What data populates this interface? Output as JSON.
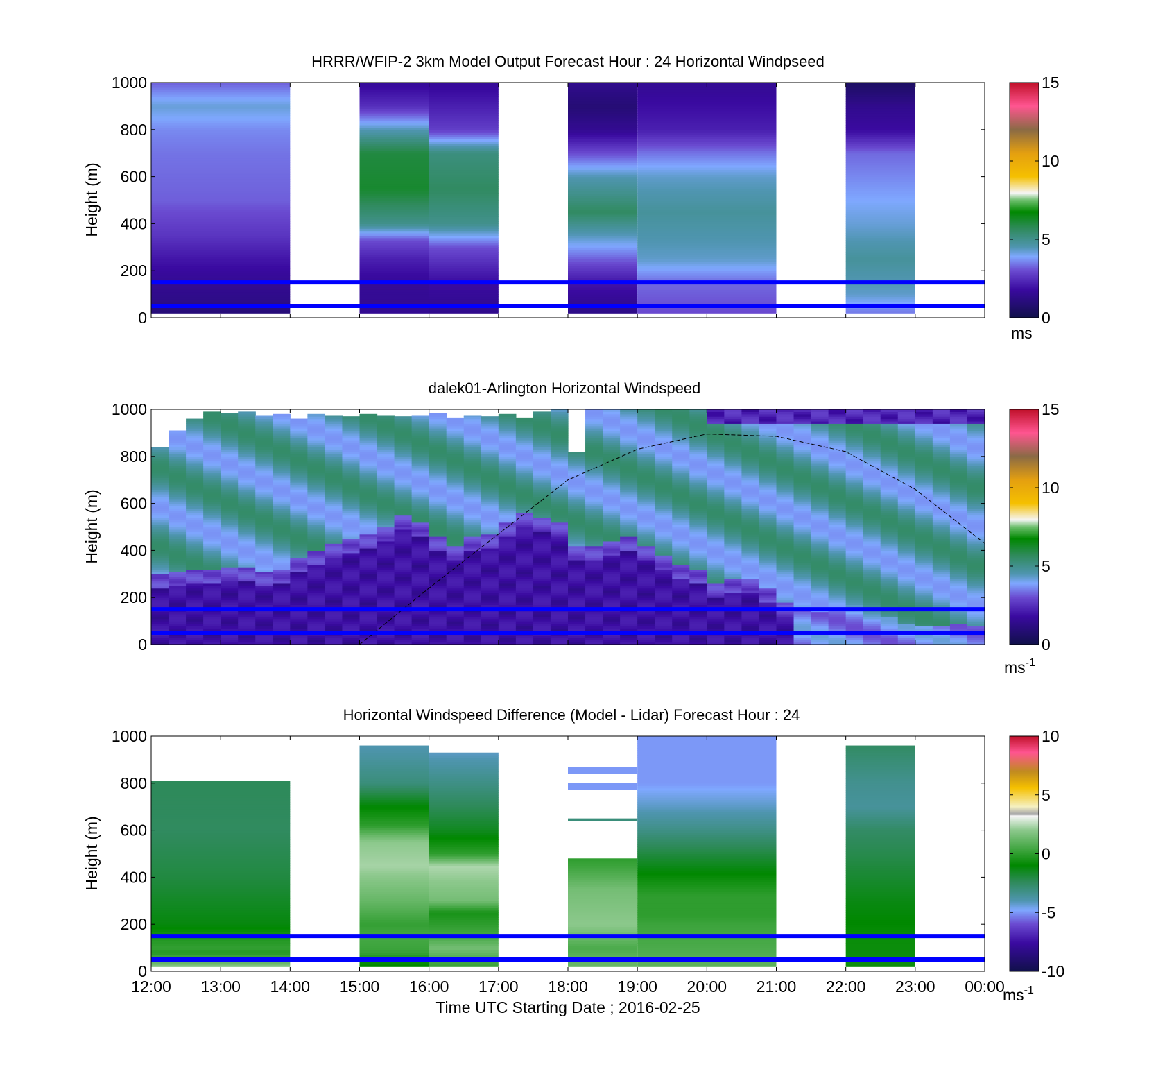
{
  "colorbar_units": [
    "ms",
    "ms",
    "-1",
    "ms",
    "-1"
  ],
  "colors": {
    "ws": [
      [
        0,
        "#10104a"
      ],
      [
        0.12,
        "#3a0aa0"
      ],
      [
        0.2,
        "#6a4ad0"
      ],
      [
        0.26,
        "#7fa8ff"
      ],
      [
        0.3,
        "#4f95b0"
      ],
      [
        0.38,
        "#2e8a5a"
      ],
      [
        0.45,
        "#008800"
      ],
      [
        0.5,
        "#6dbf6d"
      ],
      [
        0.53,
        "#f5f5f5"
      ],
      [
        0.6,
        "#f5c000"
      ],
      [
        0.7,
        "#e49f10"
      ],
      [
        0.8,
        "#8a6a45"
      ],
      [
        0.9,
        "#ff5590"
      ],
      [
        1,
        "#c0102a"
      ]
    ],
    "diff": [
      [
        0,
        "#10104a"
      ],
      [
        0.12,
        "#3a0aa0"
      ],
      [
        0.2,
        "#6a4ad0"
      ],
      [
        0.26,
        "#7fa8ff"
      ],
      [
        0.3,
        "#4f95b0"
      ],
      [
        0.38,
        "#2e8a5a"
      ],
      [
        0.45,
        "#008800"
      ],
      [
        0.6,
        "#8cc88c"
      ],
      [
        0.66,
        "#f5f5f5"
      ],
      [
        0.67,
        "#aaaaaa"
      ],
      [
        0.7,
        "#f5f0c0"
      ],
      [
        0.78,
        "#f5c000"
      ],
      [
        0.85,
        "#c08a20"
      ],
      [
        0.93,
        "#ff5590"
      ],
      [
        1,
        "#c0102a"
      ]
    ],
    "line": "#0000ff",
    "sun_curve": "#000000"
  },
  "chart_data": [
    {
      "type": "heatmap",
      "title": "HRRR/WFIP-2 3km Model Output   Forecast Hour : 24 Horizontal Windpseed",
      "ylabel": "Height (m)",
      "ylim": [
        0,
        1000
      ],
      "yticks": [
        "0",
        "200",
        "400",
        "600",
        "800",
        "1000"
      ],
      "xlim_hours": [
        12,
        24
      ],
      "colorbar": {
        "range": [
          0,
          15
        ],
        "ticks": [
          "0",
          "5",
          "10",
          "15"
        ],
        "unit": "ms",
        "colormap": "ws"
      },
      "reference_heights_m": [
        150,
        50
      ],
      "columns": [
        {
          "start_hour": 12,
          "end_hour": 14,
          "top_m": 1000,
          "bottom_m": 20,
          "profile": [
            [
              30,
              1.0
            ],
            [
              80,
              1.3
            ],
            [
              150,
              1.5
            ],
            [
              250,
              2.0
            ],
            [
              350,
              2.6
            ],
            [
              500,
              3.2
            ],
            [
              700,
              3.4
            ],
            [
              800,
              3.6
            ],
            [
              900,
              4.2
            ],
            [
              1000,
              3.2
            ]
          ]
        },
        {
          "start_hour": 15,
          "end_hour": 16,
          "top_m": 1000,
          "bottom_m": 20,
          "profile": [
            [
              30,
              1.5
            ],
            [
              150,
              1.6
            ],
            [
              250,
              2.2
            ],
            [
              330,
              3.0
            ],
            [
              400,
              5.0
            ],
            [
              550,
              6.2
            ],
            [
              700,
              6.0
            ],
            [
              800,
              4.5
            ],
            [
              900,
              2.5
            ],
            [
              1000,
              1.6
            ]
          ]
        },
        {
          "start_hour": 16,
          "end_hour": 17,
          "top_m": 1000,
          "bottom_m": 20,
          "profile": [
            [
              30,
              1.4
            ],
            [
              150,
              1.8
            ],
            [
              300,
              3.0
            ],
            [
              400,
              5.0
            ],
            [
              550,
              5.6
            ],
            [
              700,
              5.2
            ],
            [
              800,
              2.8
            ],
            [
              1000,
              1.6
            ]
          ]
        },
        {
          "start_hour": 18,
          "end_hour": 19,
          "top_m": 1000,
          "bottom_m": 20,
          "profile": [
            [
              30,
              1.3
            ],
            [
              150,
              2.0
            ],
            [
              300,
              3.8
            ],
            [
              450,
              5.6
            ],
            [
              600,
              4.5
            ],
            [
              700,
              3.0
            ],
            [
              800,
              1.5
            ],
            [
              900,
              0.9
            ],
            [
              1000,
              1.4
            ]
          ]
        },
        {
          "start_hour": 19,
          "end_hour": 21,
          "top_m": 1000,
          "bottom_m": 20,
          "profile": [
            [
              30,
              3.0
            ],
            [
              150,
              3.3
            ],
            [
              250,
              4.3
            ],
            [
              450,
              4.8
            ],
            [
              600,
              4.3
            ],
            [
              700,
              3.4
            ],
            [
              800,
              2.2
            ],
            [
              1000,
              1.5
            ]
          ]
        },
        {
          "start_hour": 22,
          "end_hour": 23,
          "top_m": 1000,
          "bottom_m": 20,
          "profile": [
            [
              30,
              3.5
            ],
            [
              100,
              4.3
            ],
            [
              250,
              4.8
            ],
            [
              400,
              4.2
            ],
            [
              600,
              3.6
            ],
            [
              700,
              3.3
            ],
            [
              800,
              1.8
            ],
            [
              900,
              1.4
            ],
            [
              1000,
              0.5
            ]
          ]
        }
      ]
    },
    {
      "type": "heatmap",
      "title": "dalek01-Arlington  Horizontal Windspeed",
      "ylabel": "Height (m)",
      "ylim": [
        0,
        1000
      ],
      "yticks": [
        "0",
        "200",
        "400",
        "600",
        "800",
        "1000"
      ],
      "xlim_hours": [
        12,
        24
      ],
      "colorbar": {
        "range": [
          0,
          15
        ],
        "ticks": [
          "0",
          "5",
          "10",
          "15"
        ],
        "unit": "ms-1",
        "colormap": "ws"
      },
      "reference_heights_m": [
        150,
        50
      ],
      "time_step_hours": 0.25,
      "profile_start_hour": 12,
      "top_m": [
        840,
        910,
        960,
        990,
        985,
        990,
        975,
        980,
        960,
        980,
        975,
        970,
        980,
        975,
        970,
        975,
        985,
        965,
        975,
        970,
        980,
        965,
        990,
        1000,
        820,
        1000,
        1000,
        1000,
        1000,
        1000,
        1000,
        1000,
        1000,
        1000,
        1000,
        1000,
        1000,
        1000,
        1000,
        1000,
        1000,
        1000,
        1000,
        1000,
        1000,
        1000,
        1000,
        1000
      ],
      "interface_m": [
        300,
        310,
        320,
        320,
        330,
        330,
        310,
        320,
        370,
        400,
        430,
        450,
        470,
        500,
        550,
        520,
        460,
        420,
        460,
        470,
        520,
        560,
        540,
        520,
        420,
        420,
        440,
        460,
        420,
        380,
        340,
        320,
        260,
        280,
        280,
        240,
        180,
        160,
        140,
        150,
        130,
        110,
        120,
        90,
        80,
        80,
        90,
        80
      ],
      "sun_curve": [
        [
          15,
          0
        ],
        [
          16,
          240
        ],
        [
          17,
          470
        ],
        [
          18,
          700
        ],
        [
          19,
          830
        ],
        [
          20,
          895
        ],
        [
          21,
          885
        ],
        [
          22,
          820
        ],
        [
          23,
          660
        ],
        [
          24,
          430
        ]
      ]
    },
    {
      "type": "heatmap",
      "title": "Horizontal Windspeed Difference (Model - Lidar) Forecast Hour : 24",
      "ylabel": "Height (m)",
      "xlabel": "Time UTC  Starting Date ; 2016-02-25",
      "ylim": [
        0,
        1000
      ],
      "yticks": [
        "0",
        "200",
        "400",
        "600",
        "800",
        "1000"
      ],
      "xticks": [
        "12:00",
        "13:00",
        "14:00",
        "15:00",
        "16:00",
        "17:00",
        "18:00",
        "19:00",
        "20:00",
        "21:00",
        "22:00",
        "23:00",
        "00:00"
      ],
      "xlim_hours": [
        12,
        24
      ],
      "colorbar": {
        "range": [
          -10,
          10
        ],
        "ticks": [
          "-10",
          "-5",
          "0",
          "5",
          "10"
        ],
        "unit": "ms-1",
        "colormap": "diff"
      },
      "reference_heights_m": [
        150,
        50
      ],
      "columns": [
        {
          "start_hour": 12,
          "end_hour": 14,
          "top_m": 810,
          "bottom_m": 20,
          "profile": [
            [
              20,
              2.0
            ],
            [
              40,
              1.0
            ],
            [
              80,
              -0.2
            ],
            [
              100,
              0.1
            ],
            [
              140,
              -0.3
            ],
            [
              200,
              -1.2
            ],
            [
              400,
              -2.0
            ],
            [
              600,
              -2.5
            ],
            [
              800,
              -2.4
            ]
          ]
        },
        {
          "start_hour": 15,
          "end_hour": 16,
          "top_m": 960,
          "bottom_m": 20,
          "profile": [
            [
              30,
              -1.0
            ],
            [
              80,
              0.2
            ],
            [
              150,
              0.5
            ],
            [
              200,
              0.1
            ],
            [
              300,
              1.2
            ],
            [
              450,
              2.3
            ],
            [
              550,
              2.0
            ],
            [
              620,
              0.0
            ],
            [
              700,
              -1.0
            ],
            [
              800,
              -3.0
            ],
            [
              960,
              -4.0
            ]
          ]
        },
        {
          "start_hour": 16,
          "end_hour": 17,
          "top_m": 930,
          "bottom_m": 20,
          "profile": [
            [
              30,
              0.3
            ],
            [
              100,
              1.5
            ],
            [
              150,
              0.5
            ],
            [
              250,
              -0.5
            ],
            [
              300,
              1.5
            ],
            [
              450,
              2.4
            ],
            [
              500,
              0.0
            ],
            [
              600,
              -1.5
            ],
            [
              800,
              -3.2
            ],
            [
              930,
              -4.2
            ]
          ]
        },
        {
          "start_hour": 18,
          "end_hour": 19,
          "top_m": 480,
          "bottom_m": 20,
          "profile": [
            [
              30,
              1.2
            ],
            [
              100,
              0.6
            ],
            [
              200,
              2.0
            ],
            [
              350,
              1.5
            ],
            [
              450,
              0.3
            ],
            [
              480,
              0.0
            ]
          ],
          "bands": [
            [
              640,
              650,
              -3
            ],
            [
              770,
              800,
              -5
            ],
            [
              840,
              870,
              -5
            ]
          ]
        },
        {
          "start_hour": 19,
          "end_hour": 21,
          "top_m": 1000,
          "bottom_m": 20,
          "profile": [
            [
              30,
              1.0
            ],
            [
              100,
              0.6
            ],
            [
              200,
              0.3
            ],
            [
              240,
              0.0
            ],
            [
              320,
              0.0
            ],
            [
              400,
              -0.8
            ],
            [
              500,
              -2.0
            ],
            [
              600,
              -3.2
            ],
            [
              700,
              -4.2
            ],
            [
              800,
              -5.0
            ],
            [
              1000,
              -5.0
            ]
          ]
        },
        {
          "start_hour": 22,
          "end_hour": 23,
          "top_m": 960,
          "bottom_m": 20,
          "profile": [
            [
              30,
              -0.7
            ],
            [
              150,
              -0.8
            ],
            [
              300,
              -1.3
            ],
            [
              500,
              -2.2
            ],
            [
              600,
              -2.6
            ],
            [
              700,
              -3.6
            ],
            [
              800,
              -3.4
            ],
            [
              960,
              -2.6
            ]
          ]
        }
      ]
    }
  ]
}
